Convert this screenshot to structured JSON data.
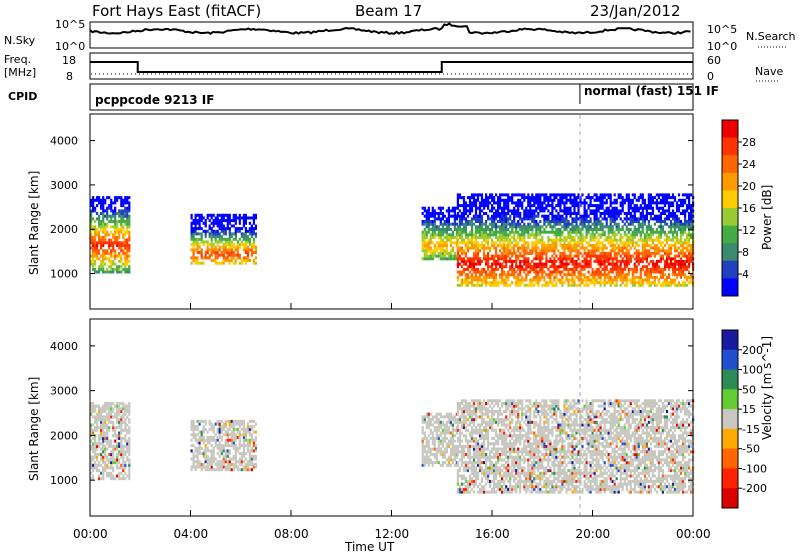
{
  "header": {
    "radar": "Fort Hays East (fitACF)",
    "beam": "Beam 17",
    "date": "23/Jan/2012"
  },
  "panels": {
    "nsky": {
      "left_label": "N.Sky",
      "left_ticks": [
        "10^5",
        "10^0"
      ],
      "right_ticks": [
        "10^5",
        "10^0"
      ],
      "right_label": "N.Search"
    },
    "freq": {
      "left_label_1": "Freq.",
      "left_label_2": "[MHz]",
      "left_ticks": [
        "18",
        "8"
      ],
      "right_ticks": [
        "60",
        "0"
      ],
      "right_label": "Nave"
    },
    "cpid": {
      "label": "CPID",
      "mode_1": "pcppcode 9213 IF",
      "mode_2": "normal (fast) 151 IF"
    }
  },
  "colors": {
    "power_scale": [
      "#0000ff",
      "#2040c0",
      "#3a8a70",
      "#44aa44",
      "#99cc33",
      "#ffcc00",
      "#ff9900",
      "#ff6600",
      "#ff3300",
      "#ee0000"
    ],
    "velocity_scale": [
      "#1a1aa0",
      "#2050d0",
      "#2e8b57",
      "#66cc33",
      "#c8c8c0",
      "#ffaa00",
      "#ff6600",
      "#ff2200",
      "#dd0000"
    ],
    "ground_scatter": "#c8c8c0"
  },
  "chart_data": [
    {
      "type": "heatmap",
      "name": "power",
      "ylabel": "Slant Range [km]",
      "yticks": [
        "4000",
        "3000",
        "2000",
        "1000"
      ],
      "ylim": [
        200,
        4600
      ],
      "colorbar_label": "Power [dB]",
      "colorbar_ticks": [
        "28",
        "24",
        "20",
        "16",
        "12",
        "8",
        "4"
      ],
      "clim": [
        0,
        32
      ],
      "features": [
        {
          "t0": 0.0,
          "t1": 1.6,
          "r0": 1000,
          "r1": 2700,
          "peak_range": 1600,
          "peak_db": 26
        },
        {
          "t0": 4.0,
          "t1": 6.6,
          "r0": 1200,
          "r1": 2300,
          "peak_range": 1400,
          "peak_db": 24
        },
        {
          "t0": 13.2,
          "t1": 14.6,
          "r0": 1300,
          "r1": 2500,
          "peak_range": 1600,
          "peak_db": 18
        },
        {
          "t0": 14.6,
          "t1": 24.0,
          "r0": 700,
          "r1": 2800,
          "peak_range": 1200,
          "peak_db": 28
        }
      ]
    },
    {
      "type": "heatmap",
      "name": "velocity",
      "ylabel": "Slant Range [km]",
      "yticks": [
        "4000",
        "3000",
        "2000",
        "1000"
      ],
      "ylim": [
        200,
        4600
      ],
      "colorbar_label": "Velocity [m s^-1]",
      "colorbar_ticks": [
        "200",
        "100",
        "50",
        "15",
        "-15",
        "-50",
        "-100",
        "-200"
      ],
      "clim": [
        -250,
        250
      ],
      "xlabel": "Time UT",
      "xticks": [
        "00:00",
        "04:00",
        "08:00",
        "12:00",
        "16:00",
        "20:00",
        "00:00"
      ],
      "xlim_hours": [
        0,
        24
      ]
    }
  ],
  "cpid_switch_hours": 19.5,
  "freq_high_intervals_hours": [
    [
      0,
      1.9
    ],
    [
      14.0,
      24
    ]
  ]
}
